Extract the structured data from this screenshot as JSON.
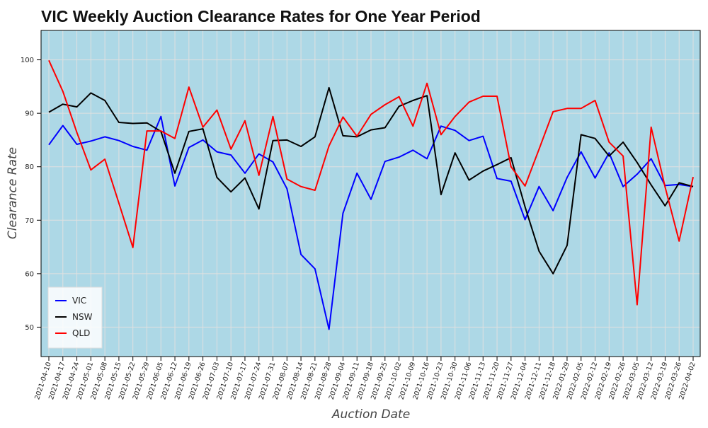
{
  "chart_data": {
    "type": "line",
    "title": "VIC Weekly Auction Clearance Rates for One Year Period",
    "xlabel": "Auction Date",
    "ylabel": "Clearance Rate",
    "ylim": [
      44.5,
      105.5
    ],
    "yticks": [
      50,
      60,
      70,
      80,
      90,
      100
    ],
    "grid": true,
    "legend_position": "bottom-left",
    "background_color": "#add8e6",
    "x": [
      "2021-04-10",
      "2021-04-17",
      "2021-04-24",
      "2021-05-01",
      "2021-05-08",
      "2021-05-15",
      "2021-05-22",
      "2021-05-29",
      "2021-06-05",
      "2021-06-12",
      "2021-06-19",
      "2021-06-26",
      "2021-07-03",
      "2021-07-10",
      "2021-07-17",
      "2021-07-24",
      "2021-07-31",
      "2021-08-07",
      "2021-08-14",
      "2021-08-21",
      "2021-08-28",
      "2021-09-04",
      "2021-09-11",
      "2021-09-18",
      "2021-09-25",
      "2021-10-02",
      "2021-10-09",
      "2021-10-16",
      "2021-10-23",
      "2021-10-30",
      "2021-11-06",
      "2021-11-13",
      "2021-11-20",
      "2021-11-27",
      "2021-12-04",
      "2021-12-11",
      "2021-12-18",
      "2022-01-29",
      "2022-02-05",
      "2022-02-12",
      "2022-02-19",
      "2022-02-26",
      "2022-03-05",
      "2022-03-12",
      "2022-03-19",
      "2022-03-26",
      "2022-04-02"
    ],
    "series": [
      {
        "name": "VIC",
        "color": "#0000ff",
        "values": [
          84.1,
          87.7,
          84.2,
          84.8,
          85.6,
          84.9,
          83.8,
          83.1,
          89.4,
          76.4,
          83.6,
          85.0,
          82.8,
          82.2,
          78.8,
          82.4,
          80.9,
          75.9,
          63.6,
          60.9,
          49.6,
          71.3,
          78.8,
          73.9,
          81.0,
          81.8,
          83.1,
          81.5,
          87.6,
          86.8,
          84.9,
          85.7,
          77.8,
          77.3,
          70.1,
          76.3,
          71.8,
          78.0,
          82.8,
          77.9,
          82.6,
          76.3,
          78.6,
          81.5,
          76.5,
          76.7,
          76.3
        ]
      },
      {
        "name": "NSW",
        "color": "#000000",
        "values": [
          90.2,
          91.7,
          91.2,
          93.8,
          92.4,
          88.3,
          88.1,
          88.2,
          86.6,
          78.8,
          86.6,
          87.1,
          78.0,
          75.3,
          77.9,
          72.1,
          84.9,
          85.0,
          83.8,
          85.6,
          94.8,
          85.8,
          85.6,
          86.9,
          87.3,
          91.3,
          92.4,
          93.3,
          74.8,
          82.6,
          77.5,
          79.2,
          80.4,
          81.7,
          72.5,
          64.2,
          60.0,
          65.3,
          86.0,
          85.3,
          82.0,
          84.6,
          80.8,
          76.6,
          72.7,
          77.0,
          76.3
        ]
      },
      {
        "name": "QLD",
        "color": "#ff0000",
        "values": [
          99.9,
          94.1,
          86.4,
          79.4,
          81.4,
          73.2,
          64.9,
          86.7,
          86.7,
          85.3,
          94.9,
          87.4,
          90.6,
          83.3,
          88.6,
          78.4,
          89.4,
          77.7,
          76.3,
          75.6,
          83.9,
          89.3,
          85.7,
          89.8,
          91.6,
          93.1,
          87.6,
          95.6,
          86.0,
          89.4,
          92.1,
          93.2,
          93.2,
          80.0,
          76.4,
          83.3,
          90.3,
          90.9,
          90.9,
          92.4,
          84.6,
          82.0,
          54.2,
          87.4,
          76.2,
          66.1,
          78.1
        ]
      }
    ]
  }
}
